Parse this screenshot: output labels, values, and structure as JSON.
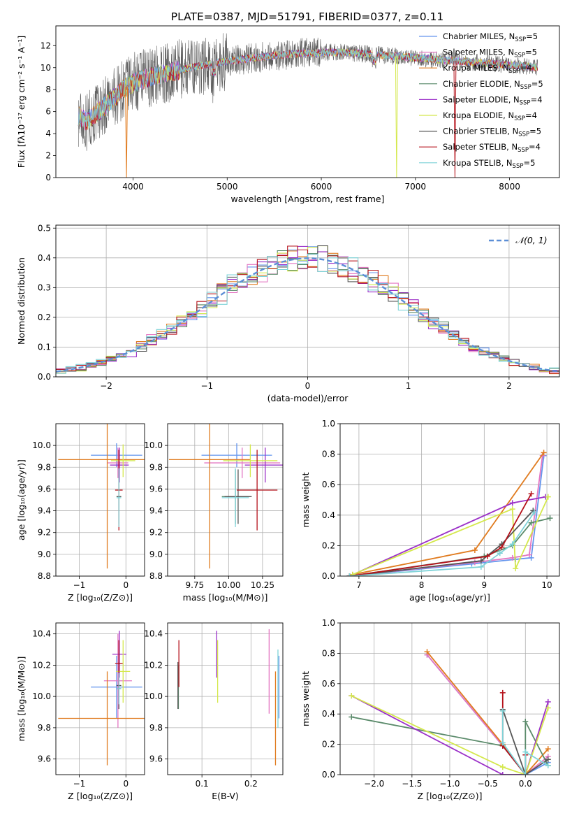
{
  "figure": {
    "title": "PLATE=0387, MJD=51791, FIBERID=0377, z=0.11"
  },
  "series_styles": [
    {
      "name": "Chabrier MILES",
      "nssp": "5",
      "color": "#6495ed"
    },
    {
      "name": "Salpeter MILES",
      "nssp": "5",
      "color": "#e377c2"
    },
    {
      "name": "Kroupa MILES",
      "nssp": "4",
      "color": "#e07b1f"
    },
    {
      "name": "Chabrier ELODIE",
      "nssp": "5",
      "color": "#5a8a6a"
    },
    {
      "name": "Salpeter ELODIE",
      "nssp": "4",
      "color": "#9b30c8"
    },
    {
      "name": "Kroupa ELODIE",
      "nssp": "4",
      "color": "#d4e84c"
    },
    {
      "name": "Chabrier STELIB",
      "nssp": "5",
      "color": "#555555"
    },
    {
      "name": "Salpeter STELIB",
      "nssp": "4",
      "color": "#b5121b"
    },
    {
      "name": "Kroupa STELIB",
      "nssp": "5",
      "color": "#7fd3d8"
    }
  ],
  "chart_data": [
    {
      "id": "spectrum",
      "type": "line",
      "title": "PLATE=0387, MJD=51791, FIBERID=0377, z=0.11",
      "xlabel": "wavelength [Angstrom, rest frame]",
      "ylabel": "Flux [fλ10⁻¹⁷ erg cm⁻² s⁻¹ A⁻¹]",
      "xlim": [
        3180,
        8530
      ],
      "ylim": [
        0,
        13.8
      ],
      "xticks": [
        4000,
        5000,
        6000,
        7000,
        8000
      ],
      "yticks": [
        0,
        2,
        4,
        6,
        8,
        10,
        12
      ],
      "grid": false,
      "legend": "upper right",
      "continuum": {
        "x": [
          3420,
          3500,
          3600,
          3700,
          3800,
          3900,
          4000,
          4100,
          4200,
          4400,
          4600,
          4800,
          5000,
          5200,
          5500,
          5800,
          6100,
          6400,
          6700,
          7000,
          7300,
          7600,
          7900,
          8200,
          8300
        ],
        "y": [
          5.6,
          5.1,
          5.8,
          6.5,
          7.3,
          8.1,
          8.6,
          8.9,
          9.2,
          9.6,
          10.0,
          10.3,
          10.6,
          10.8,
          11.1,
          11.3,
          11.4,
          11.3,
          11.1,
          10.9,
          10.7,
          10.5,
          10.3,
          10.1,
          10.0
        ]
      },
      "dips": [
        {
          "series": "Kroupa MILES",
          "x": 3930,
          "y": 0
        },
        {
          "series": "Kroupa ELODIE",
          "x": 6800,
          "y": 0
        },
        {
          "series": "Salpeter STELIB",
          "x": 7420,
          "y": 0
        }
      ]
    },
    {
      "id": "residuals",
      "type": "step",
      "xlabel": "(data-model)/error",
      "ylabel": "Normed distribution",
      "xlim": [
        -2.5,
        2.5
      ],
      "ylim": [
        0,
        0.51
      ],
      "xticks": [
        -2,
        -1,
        0,
        1,
        2
      ],
      "yticks": [
        0.0,
        0.1,
        0.2,
        0.3,
        0.4,
        0.5
      ],
      "grid": true,
      "legend": "upper right",
      "reference": {
        "name": "𝒩(0, 1)",
        "mean": 0,
        "sigma": 1,
        "color": "#5b8ed6"
      },
      "bin_width": 0.1
    },
    {
      "id": "age-vs-Z",
      "type": "errorbar",
      "xlabel": "Z [log₁₀(Z/Z⊙)]",
      "ylabel": "age  [log₁₀(age/yr)]",
      "xlim": [
        -1.5,
        0.4
      ],
      "ylim": [
        8.8,
        10.2
      ],
      "xticks": [
        -1,
        0
      ],
      "yticks": [
        8.8,
        9.0,
        9.2,
        9.4,
        9.6,
        9.8,
        10.0
      ],
      "grid": true,
      "points": [
        {
          "series": "Chabrier MILES",
          "x": -0.2,
          "xerr": 0.55,
          "y": 9.91,
          "yerr": 0.11
        },
        {
          "series": "Salpeter MILES",
          "x": -0.17,
          "xerr": 0.22,
          "y": 9.84,
          "yerr": 0.14
        },
        {
          "series": "Kroupa MILES",
          "x": -0.4,
          "xerr": 1.05,
          "y": 9.87,
          "yerr": 1.0
        },
        {
          "series": "Chabrier ELODIE",
          "x": -0.15,
          "xerr": 0.05,
          "y": 9.53,
          "yerr": 0.25
        },
        {
          "series": "Salpeter ELODIE",
          "x": -0.14,
          "xerr": 0.2,
          "y": 9.82,
          "yerr": 0.16
        },
        {
          "series": "Kroupa ELODIE",
          "x": -0.06,
          "xerr": 0.26,
          "y": 9.86,
          "yerr": 0.15
        },
        {
          "series": "Chabrier STELIB",
          "x": -0.15,
          "xerr": 0.05,
          "y": 9.53,
          "yerr": 0.25
        },
        {
          "series": "Salpeter STELIB",
          "x": -0.15,
          "xerr": 0.08,
          "y": 9.59,
          "yerr": 0.37
        },
        {
          "series": "Kroupa STELIB",
          "x": -0.15,
          "xerr": 0.05,
          "y": 9.52,
          "yerr": 0.27
        }
      ]
    },
    {
      "id": "age-vs-mass",
      "type": "errorbar",
      "xlabel": "mass [log₁₀(M/M⊙)]",
      "xlim": [
        9.55,
        10.4
      ],
      "ylim": [
        8.8,
        10.2
      ],
      "xticks": [
        9.75,
        10.0,
        10.25
      ],
      "xtick_labels": [
        "9.75",
        "10.00",
        "10.25"
      ],
      "yticks": [
        8.8,
        9.0,
        9.2,
        9.4,
        9.6,
        9.8,
        10.0
      ],
      "grid": true,
      "points": [
        {
          "series": "Chabrier MILES",
          "x": 10.06,
          "xerr": 0.26,
          "y": 9.91,
          "yerr": 0.11
        },
        {
          "series": "Salpeter MILES",
          "x": 10.1,
          "xerr": 0.28,
          "y": 9.84,
          "yerr": 0.14
        },
        {
          "series": "Kroupa MILES",
          "x": 9.86,
          "xerr": 0.3,
          "y": 9.87,
          "yerr": 1.0
        },
        {
          "series": "Chabrier ELODIE",
          "x": 10.05,
          "xerr": 0.1,
          "y": 9.53,
          "yerr": 0.25
        },
        {
          "series": "Salpeter ELODIE",
          "x": 10.27,
          "xerr": 0.15,
          "y": 9.82,
          "yerr": 0.16
        },
        {
          "series": "Kroupa ELODIE",
          "x": 10.16,
          "xerr": 0.2,
          "y": 9.86,
          "yerr": 0.15
        },
        {
          "series": "Chabrier STELIB",
          "x": 10.07,
          "xerr": 0.1,
          "y": 9.53,
          "yerr": 0.25
        },
        {
          "series": "Salpeter STELIB",
          "x": 10.21,
          "xerr": 0.15,
          "y": 9.59,
          "yerr": 0.37
        },
        {
          "series": "Kroupa STELIB",
          "x": 10.05,
          "xerr": 0.1,
          "y": 9.52,
          "yerr": 0.27
        }
      ]
    },
    {
      "id": "weight-vs-age",
      "type": "line",
      "xlabel": "age  [log₁₀(age/yr)]",
      "ylabel": "mass weight",
      "xlim": [
        6.7,
        10.2
      ],
      "ylim": [
        0,
        1
      ],
      "xticks": [
        7,
        8,
        9,
        10
      ],
      "yticks": [
        0.0,
        0.2,
        0.4,
        0.6,
        0.8,
        1.0
      ],
      "grid": true,
      "series": [
        {
          "name": "Chabrier MILES",
          "x": [
            6.85,
            8.8,
            9.5,
            9.75,
            9.95
          ],
          "y": [
            0.0,
            0.08,
            0.11,
            0.12,
            0.79
          ]
        },
        {
          "name": "Salpeter MILES",
          "x": [
            6.85,
            8.85,
            9.45,
            9.72,
            9.93
          ],
          "y": [
            0.0,
            0.09,
            0.12,
            0.14,
            0.79
          ]
        },
        {
          "name": "Kroupa MILES",
          "x": [
            6.9,
            8.85,
            9.95
          ],
          "y": [
            0.01,
            0.17,
            0.81
          ]
        },
        {
          "name": "Chabrier ELODIE",
          "x": [
            6.85,
            9.0,
            9.45,
            9.75,
            10.05
          ],
          "y": [
            0.0,
            0.13,
            0.2,
            0.35,
            0.38
          ]
        },
        {
          "name": "Salpeter ELODIE",
          "x": [
            6.85,
            9.45,
            9.98
          ],
          "y": [
            0.0,
            0.48,
            0.52
          ]
        },
        {
          "name": "Kroupa ELODIE",
          "x": [
            6.9,
            9.45,
            9.5,
            10.02
          ],
          "y": [
            0.01,
            0.44,
            0.05,
            0.52
          ]
        },
        {
          "name": "Chabrier STELIB",
          "x": [
            6.85,
            8.95,
            9.28,
            9.78
          ],
          "y": [
            0.0,
            0.1,
            0.21,
            0.43
          ]
        },
        {
          "name": "Salpeter STELIB",
          "x": [
            6.85,
            9.05,
            9.28,
            9.75
          ],
          "y": [
            0.0,
            0.13,
            0.19,
            0.54
          ]
        },
        {
          "name": "Kroupa STELIB",
          "x": [
            6.85,
            8.95,
            9.25,
            9.45,
            9.8
          ],
          "y": [
            0.0,
            0.06,
            0.15,
            0.21,
            0.42
          ]
        }
      ]
    },
    {
      "id": "mass-vs-Z",
      "type": "errorbar",
      "xlabel": "Z [log₁₀(Z/Z⊙)]",
      "ylabel": "mass [log₁₀(M/M⊙)]",
      "xlim": [
        -1.5,
        0.4
      ],
      "ylim": [
        9.5,
        10.47
      ],
      "xticks": [
        -1,
        0
      ],
      "yticks": [
        9.6,
        9.8,
        10.0,
        10.2,
        10.4
      ],
      "grid": true,
      "points": [
        {
          "series": "Chabrier MILES",
          "x": -0.2,
          "xerr": 0.55,
          "y": 10.06,
          "yerr": 0.2
        },
        {
          "series": "Salpeter MILES",
          "x": -0.17,
          "xerr": 0.3,
          "y": 10.1,
          "yerr": 0.3
        },
        {
          "series": "Kroupa MILES",
          "x": -0.4,
          "xerr": 1.05,
          "y": 9.86,
          "yerr": 0.3
        },
        {
          "series": "Chabrier ELODIE",
          "x": -0.15,
          "xerr": 0.05,
          "y": 10.05,
          "yerr": 0.1
        },
        {
          "series": "Salpeter ELODIE",
          "x": -0.14,
          "xerr": 0.15,
          "y": 10.27,
          "yerr": 0.15
        },
        {
          "series": "Kroupa ELODIE",
          "x": -0.06,
          "xerr": 0.15,
          "y": 10.16,
          "yerr": 0.2
        },
        {
          "series": "Chabrier STELIB",
          "x": -0.15,
          "xerr": 0.05,
          "y": 10.07,
          "yerr": 0.15
        },
        {
          "series": "Salpeter STELIB",
          "x": -0.15,
          "xerr": 0.08,
          "y": 10.21,
          "yerr": 0.15
        },
        {
          "series": "Kroupa STELIB",
          "x": -0.15,
          "xerr": 0.05,
          "y": 10.05,
          "yerr": 0.1
        }
      ]
    },
    {
      "id": "mass-vs-EBV",
      "type": "errorbar",
      "xlabel": "E(B-V)",
      "xlim": [
        0.03,
        0.265
      ],
      "ylim": [
        9.5,
        10.47
      ],
      "xticks": [
        0.1,
        0.2
      ],
      "yticks": [
        9.6,
        9.8,
        10.0,
        10.2,
        10.4
      ],
      "grid": true,
      "points": [
        {
          "series": "Chabrier MILES",
          "x": 0.257,
          "xerr": 0,
          "y": 10.06,
          "yerr": 0.2
        },
        {
          "series": "Salpeter MILES",
          "x": 0.237,
          "xerr": 0,
          "y": 10.16,
          "yerr": 0.27
        },
        {
          "series": "Kroupa MILES",
          "x": 0.25,
          "xerr": 0,
          "y": 9.86,
          "yerr": 0.3
        },
        {
          "series": "Chabrier ELODIE",
          "x": 0.052,
          "xerr": 0,
          "y": 10.06,
          "yerr": 0.14
        },
        {
          "series": "Salpeter ELODIE",
          "x": 0.13,
          "xerr": 0,
          "y": 10.27,
          "yerr": 0.15
        },
        {
          "series": "Kroupa ELODIE",
          "x": 0.132,
          "xerr": 0,
          "y": 10.16,
          "yerr": 0.2
        },
        {
          "series": "Chabrier STELIB",
          "x": 0.051,
          "xerr": 0,
          "y": 10.07,
          "yerr": 0.15
        },
        {
          "series": "Salpeter STELIB",
          "x": 0.053,
          "xerr": 0,
          "y": 10.21,
          "yerr": 0.15
        },
        {
          "series": "Kroupa STELIB",
          "x": 0.255,
          "xerr": 0,
          "y": 10.05,
          "yerr": 0.25
        }
      ]
    },
    {
      "id": "weight-vs-Z",
      "type": "line",
      "xlabel": "Z [log₁₀(Z/Z⊙)]",
      "ylabel": "mass weight",
      "xlim": [
        -2.45,
        0.45
      ],
      "ylim": [
        0,
        1
      ],
      "xticks": [
        -2.0,
        -1.5,
        -1.0,
        -0.5,
        0.0
      ],
      "xtick_labels": [
        "−2.0",
        "−1.5",
        "−1.0",
        "−0.5",
        "0.0"
      ],
      "yticks": [
        0.0,
        0.2,
        0.4,
        0.6,
        0.8,
        1.0
      ],
      "grid": true,
      "series": [
        {
          "name": "Chabrier MILES",
          "x": [
            -1.3,
            -0.3,
            0.0,
            0.3
          ],
          "y": [
            0.79,
            0.19,
            0.0,
            0.08
          ]
        },
        {
          "name": "Salpeter MILES",
          "x": [
            -1.3,
            -0.3,
            0.0,
            0.3
          ],
          "y": [
            0.79,
            0.19,
            0.0,
            0.12
          ]
        },
        {
          "name": "Kroupa MILES",
          "x": [
            -1.3,
            -0.3,
            0.0,
            0.3
          ],
          "y": [
            0.81,
            0.2,
            0.0,
            0.17
          ]
        },
        {
          "name": "Chabrier ELODIE",
          "x": [
            -2.3,
            -0.3,
            0.0,
            0.0,
            0.3
          ],
          "y": [
            0.38,
            0.19,
            0.0,
            0.35,
            0.06
          ]
        },
        {
          "name": "Salpeter ELODIE",
          "x": [
            -2.3,
            -0.3,
            0.0,
            0.3
          ],
          "y": [
            0.52,
            0.0,
            0.0,
            0.48
          ]
        },
        {
          "name": "Kroupa ELODIE",
          "x": [
            -2.3,
            -0.3,
            0.0,
            0.3
          ],
          "y": [
            0.52,
            0.05,
            0.0,
            0.44
          ]
        },
        {
          "name": "Chabrier STELIB",
          "x": [
            -0.3,
            0.0,
            0.3
          ],
          "y": [
            0.43,
            0.0,
            0.1
          ]
        },
        {
          "name": "Salpeter STELIB",
          "x": [
            -0.3,
            -0.3,
            0.0,
            0.0
          ],
          "y": [
            0.54,
            0.19,
            0.0,
            0.13
          ]
        },
        {
          "name": "Kroupa STELIB",
          "x": [
            -0.3,
            -0.3,
            0.0,
            0.0,
            0.3
          ],
          "y": [
            0.42,
            0.21,
            0.0,
            0.15,
            0.06
          ]
        }
      ]
    }
  ]
}
